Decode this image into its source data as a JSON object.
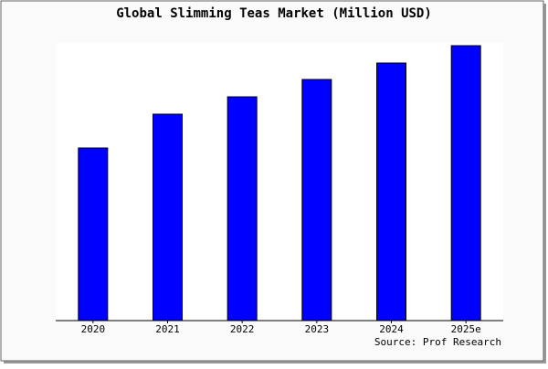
{
  "chart_data": {
    "type": "bar",
    "title": "Global Slimming Teas Market (Million USD)",
    "categories": [
      "2020",
      "2021",
      "2022",
      "2023",
      "2024",
      "2025e"
    ],
    "values": [
      189,
      226,
      245,
      264,
      282,
      301
    ],
    "color": "#0000ff",
    "ylim": [
      0,
      304
    ],
    "source": "Source: Prof Research"
  }
}
